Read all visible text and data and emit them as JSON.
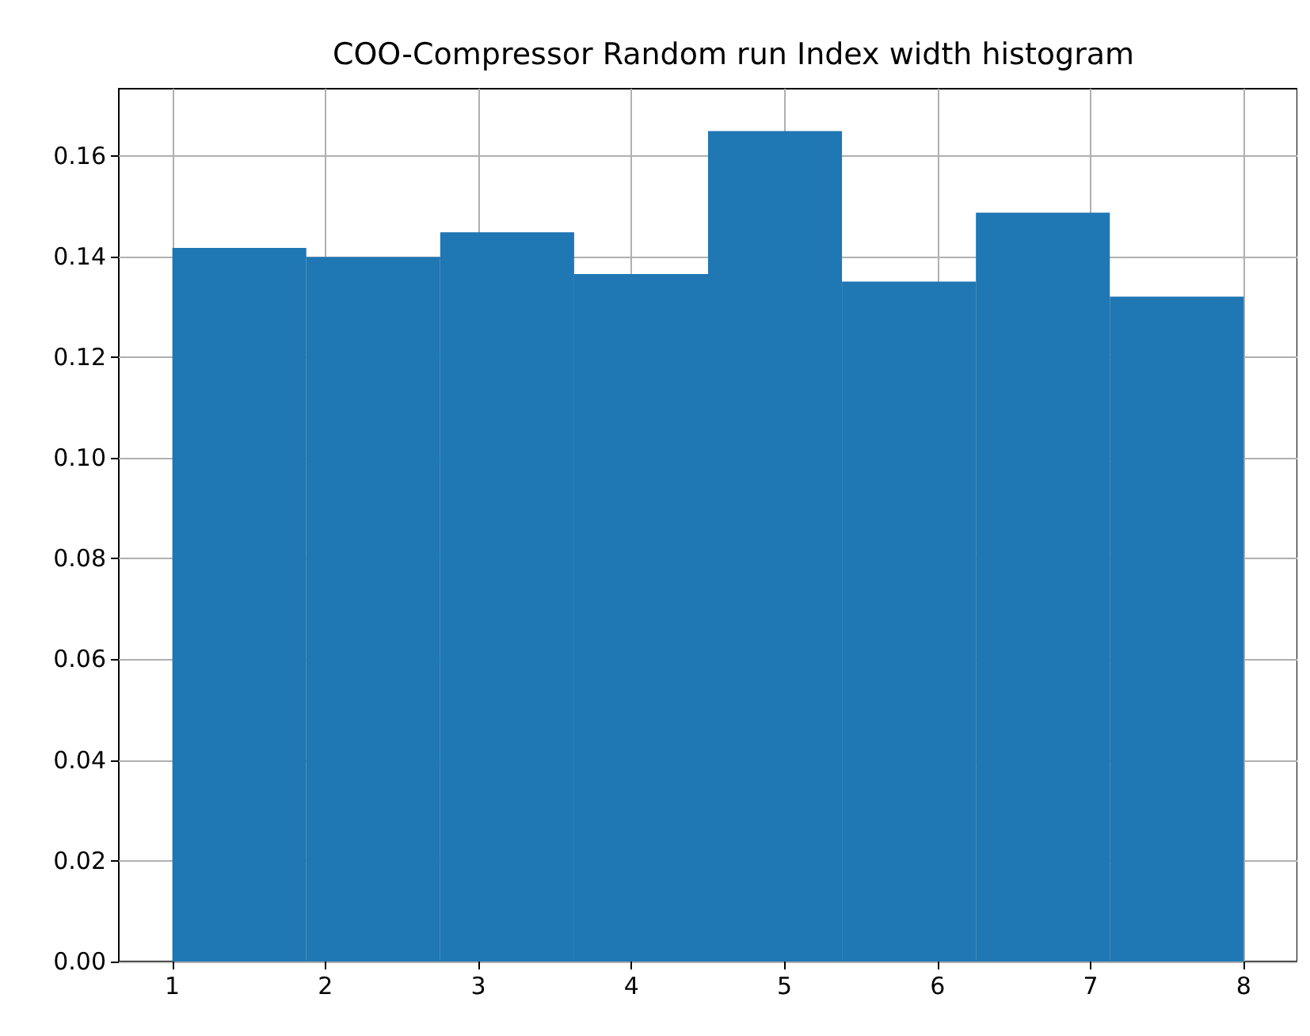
{
  "chart_data": {
    "type": "histogram",
    "title": "COO-Compressor Random run Index width histogram",
    "bins": [
      1,
      1.875,
      2.75,
      3.625,
      4.5,
      5.375,
      6.25,
      7.125,
      8
    ],
    "values": [
      0.1417,
      0.1399,
      0.1448,
      0.1365,
      0.1649,
      0.135,
      0.1487,
      0.132
    ],
    "color": "#1f77b4",
    "xlim": [
      0.65,
      8.35
    ],
    "xticks": [
      1,
      2,
      3,
      4,
      5,
      6,
      7,
      8
    ],
    "ylim": [
      0,
      0.1733
    ],
    "yticks": [
      {
        "value": 0,
        "label": "0.00"
      },
      {
        "value": 0.02,
        "label": "0.02"
      },
      {
        "value": 0.04,
        "label": "0.04"
      },
      {
        "value": 0.06,
        "label": "0.06"
      },
      {
        "value": 0.08,
        "label": "0.08"
      },
      {
        "value": 0.1,
        "label": "0.10"
      },
      {
        "value": 0.12,
        "label": "0.12"
      },
      {
        "value": 0.14,
        "label": "0.14"
      },
      {
        "value": 0.16,
        "label": "0.16"
      }
    ],
    "grid": true
  }
}
